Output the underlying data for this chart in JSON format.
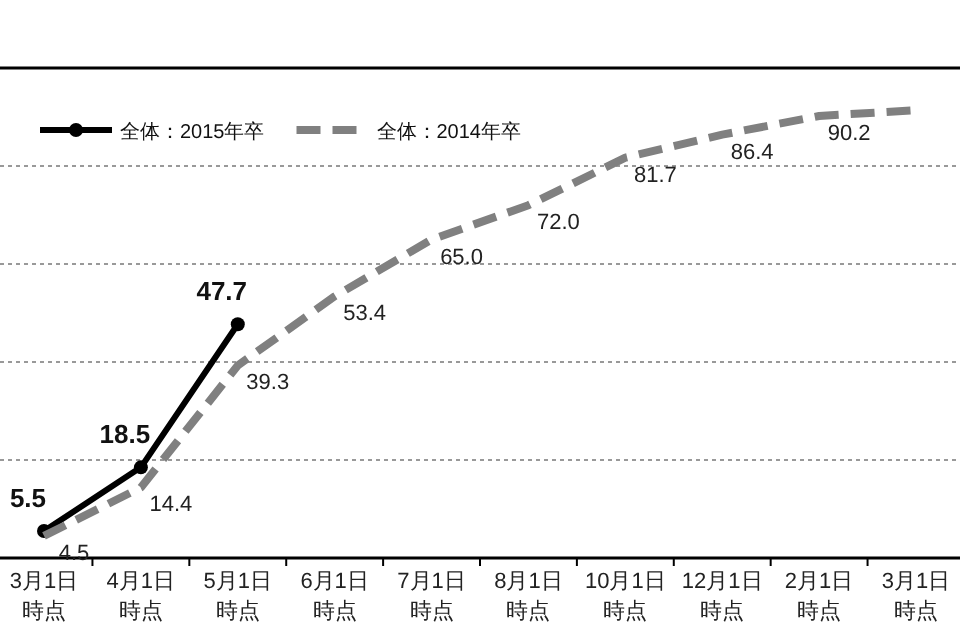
{
  "chart_data": {
    "type": "line",
    "categories": [
      "3月1日時点",
      "4月1日時点",
      "5月1日時点",
      "6月1日時点",
      "7月1日時点",
      "8月1日時点",
      "10月1日時点",
      "12月1日時点",
      "2月1日時点",
      "3月1日時点"
    ],
    "series": [
      {
        "name": "全体：2015年卒",
        "color": "#000000",
        "line_style": "solid",
        "marker": "circle",
        "values": [
          5.5,
          18.5,
          47.7,
          null,
          null,
          null,
          null,
          null,
          null,
          null
        ],
        "value_labels": [
          "5.5",
          "18.5",
          "47.7",
          null,
          null,
          null,
          null,
          null,
          null,
          null
        ]
      },
      {
        "name": "全体：2014年卒",
        "color": "#808080",
        "line_style": "dashed",
        "marker": "none",
        "values": [
          4.5,
          14.4,
          39.3,
          53.4,
          65.0,
          72.0,
          81.7,
          86.4,
          90.2,
          91.4
        ],
        "value_labels": [
          "4.5",
          "14.4",
          "39.3",
          "53.4",
          "65.0",
          "72.0",
          "81.7",
          "86.4",
          "90.2",
          null
        ]
      }
    ],
    "ylim": [
      0,
      100
    ],
    "yticks": [
      {
        "value": 20,
        "label": null
      },
      {
        "value": 40,
        "label": null
      },
      {
        "value": 60,
        "label": null
      },
      {
        "value": 80,
        "label": null
      }
    ],
    "grid": "y",
    "legend": "top left",
    "tick_labels": "x"
  }
}
